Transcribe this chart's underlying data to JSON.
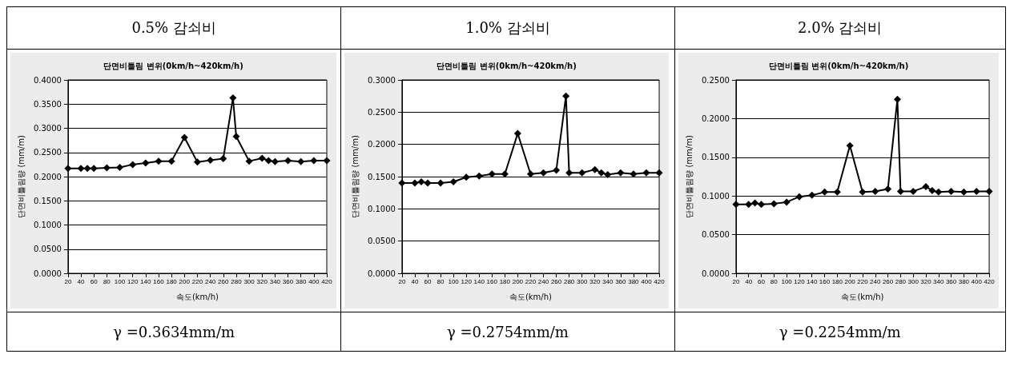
{
  "chart_data": [
    {
      "type": "line",
      "title": "0.5% 감쇠비",
      "subtitle": "단면비틀림 변위(0km/h~420km/h)",
      "xlabel": "속도(km/h)",
      "ylabel": "단면비틀림량 (mm/m)",
      "marker": "diamond",
      "grid": "y",
      "annotations": [
        "γ =0.3634mm/m"
      ],
      "x": [
        20,
        40,
        50,
        60,
        80,
        100,
        120,
        140,
        160,
        180,
        200,
        220,
        240,
        260,
        275,
        280,
        300,
        320,
        330,
        340,
        360,
        380,
        400,
        420
      ],
      "series": [
        {
          "color": "#000000",
          "values": [
            0.217,
            0.217,
            0.217,
            0.217,
            0.218,
            0.219,
            0.225,
            0.228,
            0.232,
            0.232,
            0.281,
            0.23,
            0.234,
            0.237,
            0.363,
            0.283,
            0.232,
            0.238,
            0.233,
            0.231,
            0.233,
            0.231,
            0.233,
            0.233
          ]
        }
      ],
      "xlim": [
        20,
        420
      ],
      "xticks": [
        20,
        40,
        60,
        80,
        100,
        120,
        140,
        160,
        180,
        200,
        220,
        240,
        260,
        280,
        300,
        320,
        340,
        360,
        380,
        400,
        420
      ],
      "ylim": [
        0,
        0.4
      ],
      "yticks": [
        {
          "value": 0,
          "label": "0.0000"
        },
        {
          "value": 0.05,
          "label": "0.0500"
        },
        {
          "value": 0.1,
          "label": "0.1000"
        },
        {
          "value": 0.15,
          "label": "0.1500"
        },
        {
          "value": 0.2,
          "label": "0.2000"
        },
        {
          "value": 0.25,
          "label": "0.2500"
        },
        {
          "value": 0.3,
          "label": "0.3000"
        },
        {
          "value": 0.35,
          "label": "0.3500"
        },
        {
          "value": 0.4,
          "label": "0.4000"
        }
      ]
    },
    {
      "type": "line",
      "title": "1.0% 감쇠비",
      "subtitle": "단면비틀림 변위(0km/h~420km/h)",
      "xlabel": "속도(km/h)",
      "ylabel": "단면비틀림량 (mm/m)",
      "marker": "diamond",
      "grid": "y",
      "annotations": [
        "γ =0.2754mm/m"
      ],
      "x": [
        20,
        40,
        50,
        60,
        80,
        100,
        120,
        140,
        160,
        180,
        200,
        220,
        240,
        260,
        275,
        280,
        300,
        320,
        330,
        340,
        360,
        380,
        400,
        420
      ],
      "series": [
        {
          "color": "#000000",
          "values": [
            0.14,
            0.14,
            0.142,
            0.14,
            0.14,
            0.142,
            0.149,
            0.151,
            0.154,
            0.154,
            0.217,
            0.154,
            0.156,
            0.16,
            0.275,
            0.156,
            0.156,
            0.161,
            0.156,
            0.153,
            0.156,
            0.154,
            0.156,
            0.156
          ]
        }
      ],
      "xlim": [
        20,
        420
      ],
      "xticks": [
        20,
        40,
        60,
        80,
        100,
        120,
        140,
        160,
        180,
        200,
        220,
        240,
        260,
        280,
        300,
        320,
        340,
        360,
        380,
        400,
        420
      ],
      "ylim": [
        0,
        0.3
      ],
      "yticks": [
        {
          "value": 0,
          "label": "0.0000"
        },
        {
          "value": 0.05,
          "label": "0.0500"
        },
        {
          "value": 0.1,
          "label": "0.1000"
        },
        {
          "value": 0.15,
          "label": "0.1500"
        },
        {
          "value": 0.2,
          "label": "0.2000"
        },
        {
          "value": 0.25,
          "label": "0.2500"
        },
        {
          "value": 0.3,
          "label": "0.3000"
        }
      ]
    },
    {
      "type": "line",
      "title": "2.0% 감쇠비",
      "subtitle": "단면비틀림 변위(0km/h~420km/h)",
      "xlabel": "속도(km/h)",
      "ylabel": "단면비틀림량 (mm/m)",
      "marker": "diamond",
      "grid": "y",
      "annotations": [
        "γ =0.2254mm/m"
      ],
      "x": [
        20,
        40,
        50,
        60,
        80,
        100,
        120,
        140,
        160,
        180,
        200,
        220,
        240,
        260,
        275,
        280,
        300,
        320,
        330,
        340,
        360,
        380,
        400,
        420
      ],
      "series": [
        {
          "color": "#000000",
          "values": [
            0.089,
            0.089,
            0.091,
            0.089,
            0.09,
            0.092,
            0.099,
            0.101,
            0.105,
            0.105,
            0.165,
            0.105,
            0.106,
            0.109,
            0.225,
            0.106,
            0.106,
            0.112,
            0.107,
            0.105,
            0.106,
            0.105,
            0.106,
            0.106
          ]
        }
      ],
      "xlim": [
        20,
        420
      ],
      "xticks": [
        20,
        40,
        60,
        80,
        100,
        120,
        140,
        160,
        180,
        200,
        220,
        240,
        260,
        280,
        300,
        320,
        340,
        360,
        380,
        400,
        420
      ],
      "ylim": [
        0,
        0.25
      ],
      "yticks": [
        {
          "value": 0,
          "label": "0.0000"
        },
        {
          "value": 0.05,
          "label": "0.0500"
        },
        {
          "value": 0.1,
          "label": "0.1000"
        },
        {
          "value": 0.15,
          "label": "0.1500"
        },
        {
          "value": 0.2,
          "label": "0.2000"
        },
        {
          "value": 0.25,
          "label": "0.2500"
        }
      ]
    }
  ]
}
